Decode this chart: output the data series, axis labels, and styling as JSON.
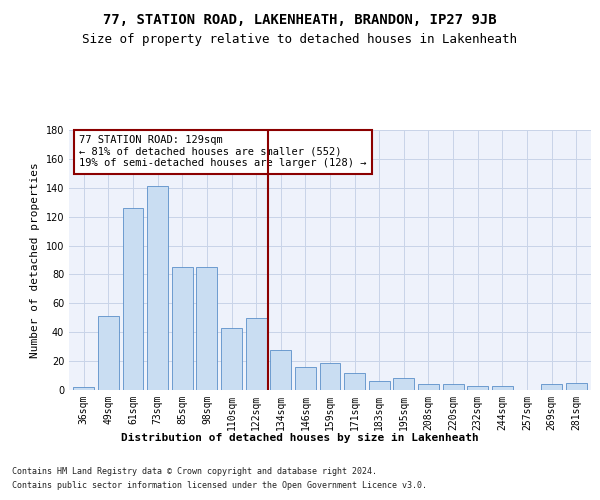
{
  "title": "77, STATION ROAD, LAKENHEATH, BRANDON, IP27 9JB",
  "subtitle": "Size of property relative to detached houses in Lakenheath",
  "xlabel": "Distribution of detached houses by size in Lakenheath",
  "ylabel": "Number of detached properties",
  "categories": [
    "36sqm",
    "49sqm",
    "61sqm",
    "73sqm",
    "85sqm",
    "98sqm",
    "110sqm",
    "122sqm",
    "134sqm",
    "146sqm",
    "159sqm",
    "171sqm",
    "183sqm",
    "195sqm",
    "208sqm",
    "220sqm",
    "232sqm",
    "244sqm",
    "257sqm",
    "269sqm",
    "281sqm"
  ],
  "values": [
    2,
    51,
    126,
    141,
    85,
    85,
    43,
    50,
    28,
    16,
    19,
    12,
    6,
    8,
    4,
    4,
    3,
    3,
    0,
    4,
    5
  ],
  "bar_color": "#c9ddf2",
  "bar_edge_color": "#5b8fc9",
  "ref_line_color": "#8b0000",
  "annotation_box_text": "77 STATION ROAD: 129sqm\n← 81% of detached houses are smaller (552)\n19% of semi-detached houses are larger (128) →",
  "annotation_box_color": "#8b0000",
  "ylim": [
    0,
    180
  ],
  "yticks": [
    0,
    20,
    40,
    60,
    80,
    100,
    120,
    140,
    160,
    180
  ],
  "grid_color": "#c8d4e8",
  "background_color": "#eef2fb",
  "footer_line1": "Contains HM Land Registry data © Crown copyright and database right 2024.",
  "footer_line2": "Contains public sector information licensed under the Open Government Licence v3.0.",
  "title_fontsize": 10,
  "subtitle_fontsize": 9,
  "xlabel_fontsize": 8,
  "ylabel_fontsize": 8,
  "tick_fontsize": 7,
  "footer_fontsize": 6,
  "annotation_fontsize": 7.5
}
